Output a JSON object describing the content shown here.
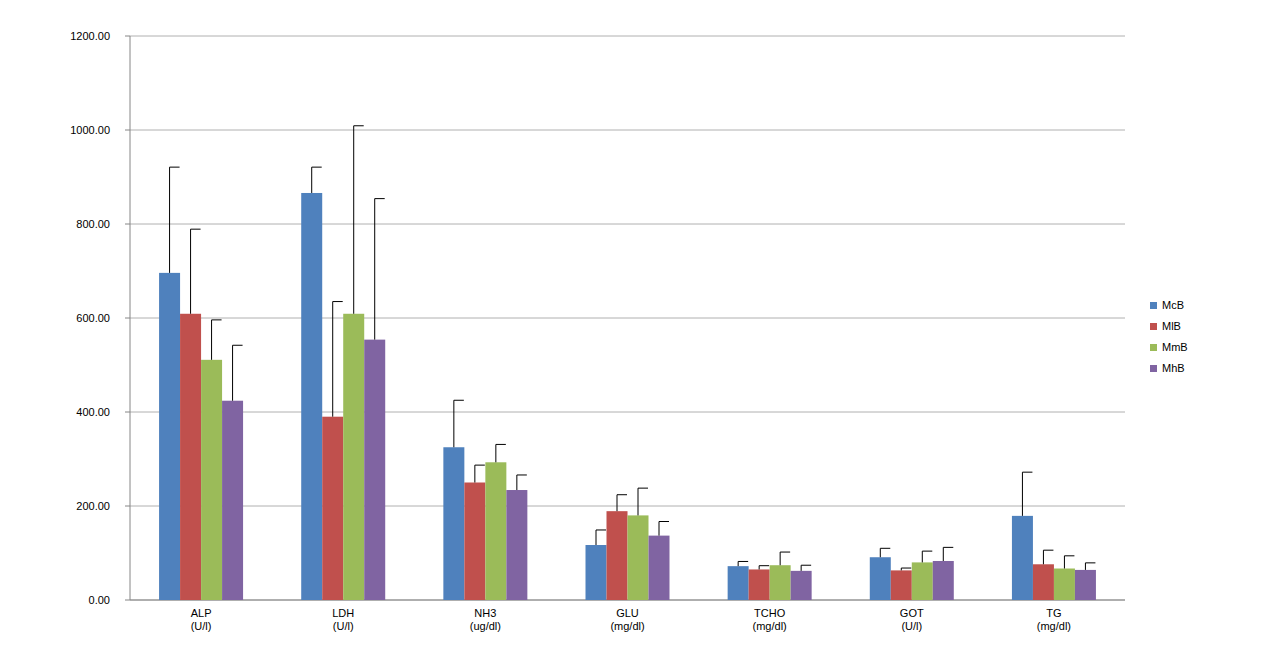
{
  "chart_data": {
    "type": "bar",
    "categories": [
      "ALP\n(U/l)",
      "LDH\n(U/l)",
      "NH3\n(ug/dl)",
      "GLU\n(mg/dl)",
      "TCHO\n(mg/dl)",
      "GOT\n(U/l)",
      "TG\n(mg/dl)"
    ],
    "series": [
      {
        "name": "McB",
        "color": "#4f81bd",
        "values": [
          696,
          866,
          325,
          117,
          72,
          91,
          179
        ],
        "errors": [
          225,
          55,
          100,
          32,
          10,
          19,
          93
        ]
      },
      {
        "name": "MlB",
        "color": "#c0504d",
        "values": [
          609,
          390,
          250,
          189,
          65,
          63,
          76
        ],
        "errors": [
          180,
          245,
          37,
          35,
          8,
          5,
          30
        ]
      },
      {
        "name": "MmB",
        "color": "#9bbb59",
        "values": [
          511,
          609,
          293,
          180,
          74,
          80,
          67
        ],
        "errors": [
          85,
          400,
          38,
          58,
          28,
          24,
          27
        ]
      },
      {
        "name": "MhB",
        "color": "#8064a2",
        "values": [
          424,
          554,
          234,
          137,
          62,
          83,
          64
        ],
        "errors": [
          118,
          300,
          32,
          30,
          12,
          29,
          15
        ]
      }
    ],
    "ylim": [
      0,
      1200
    ],
    "yticks": [
      {
        "value": 0,
        "label": "0.00"
      },
      {
        "value": 200,
        "label": "200.00"
      },
      {
        "value": 400,
        "label": "400.00"
      },
      {
        "value": 600,
        "label": "600.00"
      },
      {
        "value": 800,
        "label": "800.00"
      },
      {
        "value": 1000,
        "label": "1000.00"
      },
      {
        "value": 1200,
        "label": "1200.00"
      }
    ],
    "grid": true,
    "legend": "right"
  }
}
